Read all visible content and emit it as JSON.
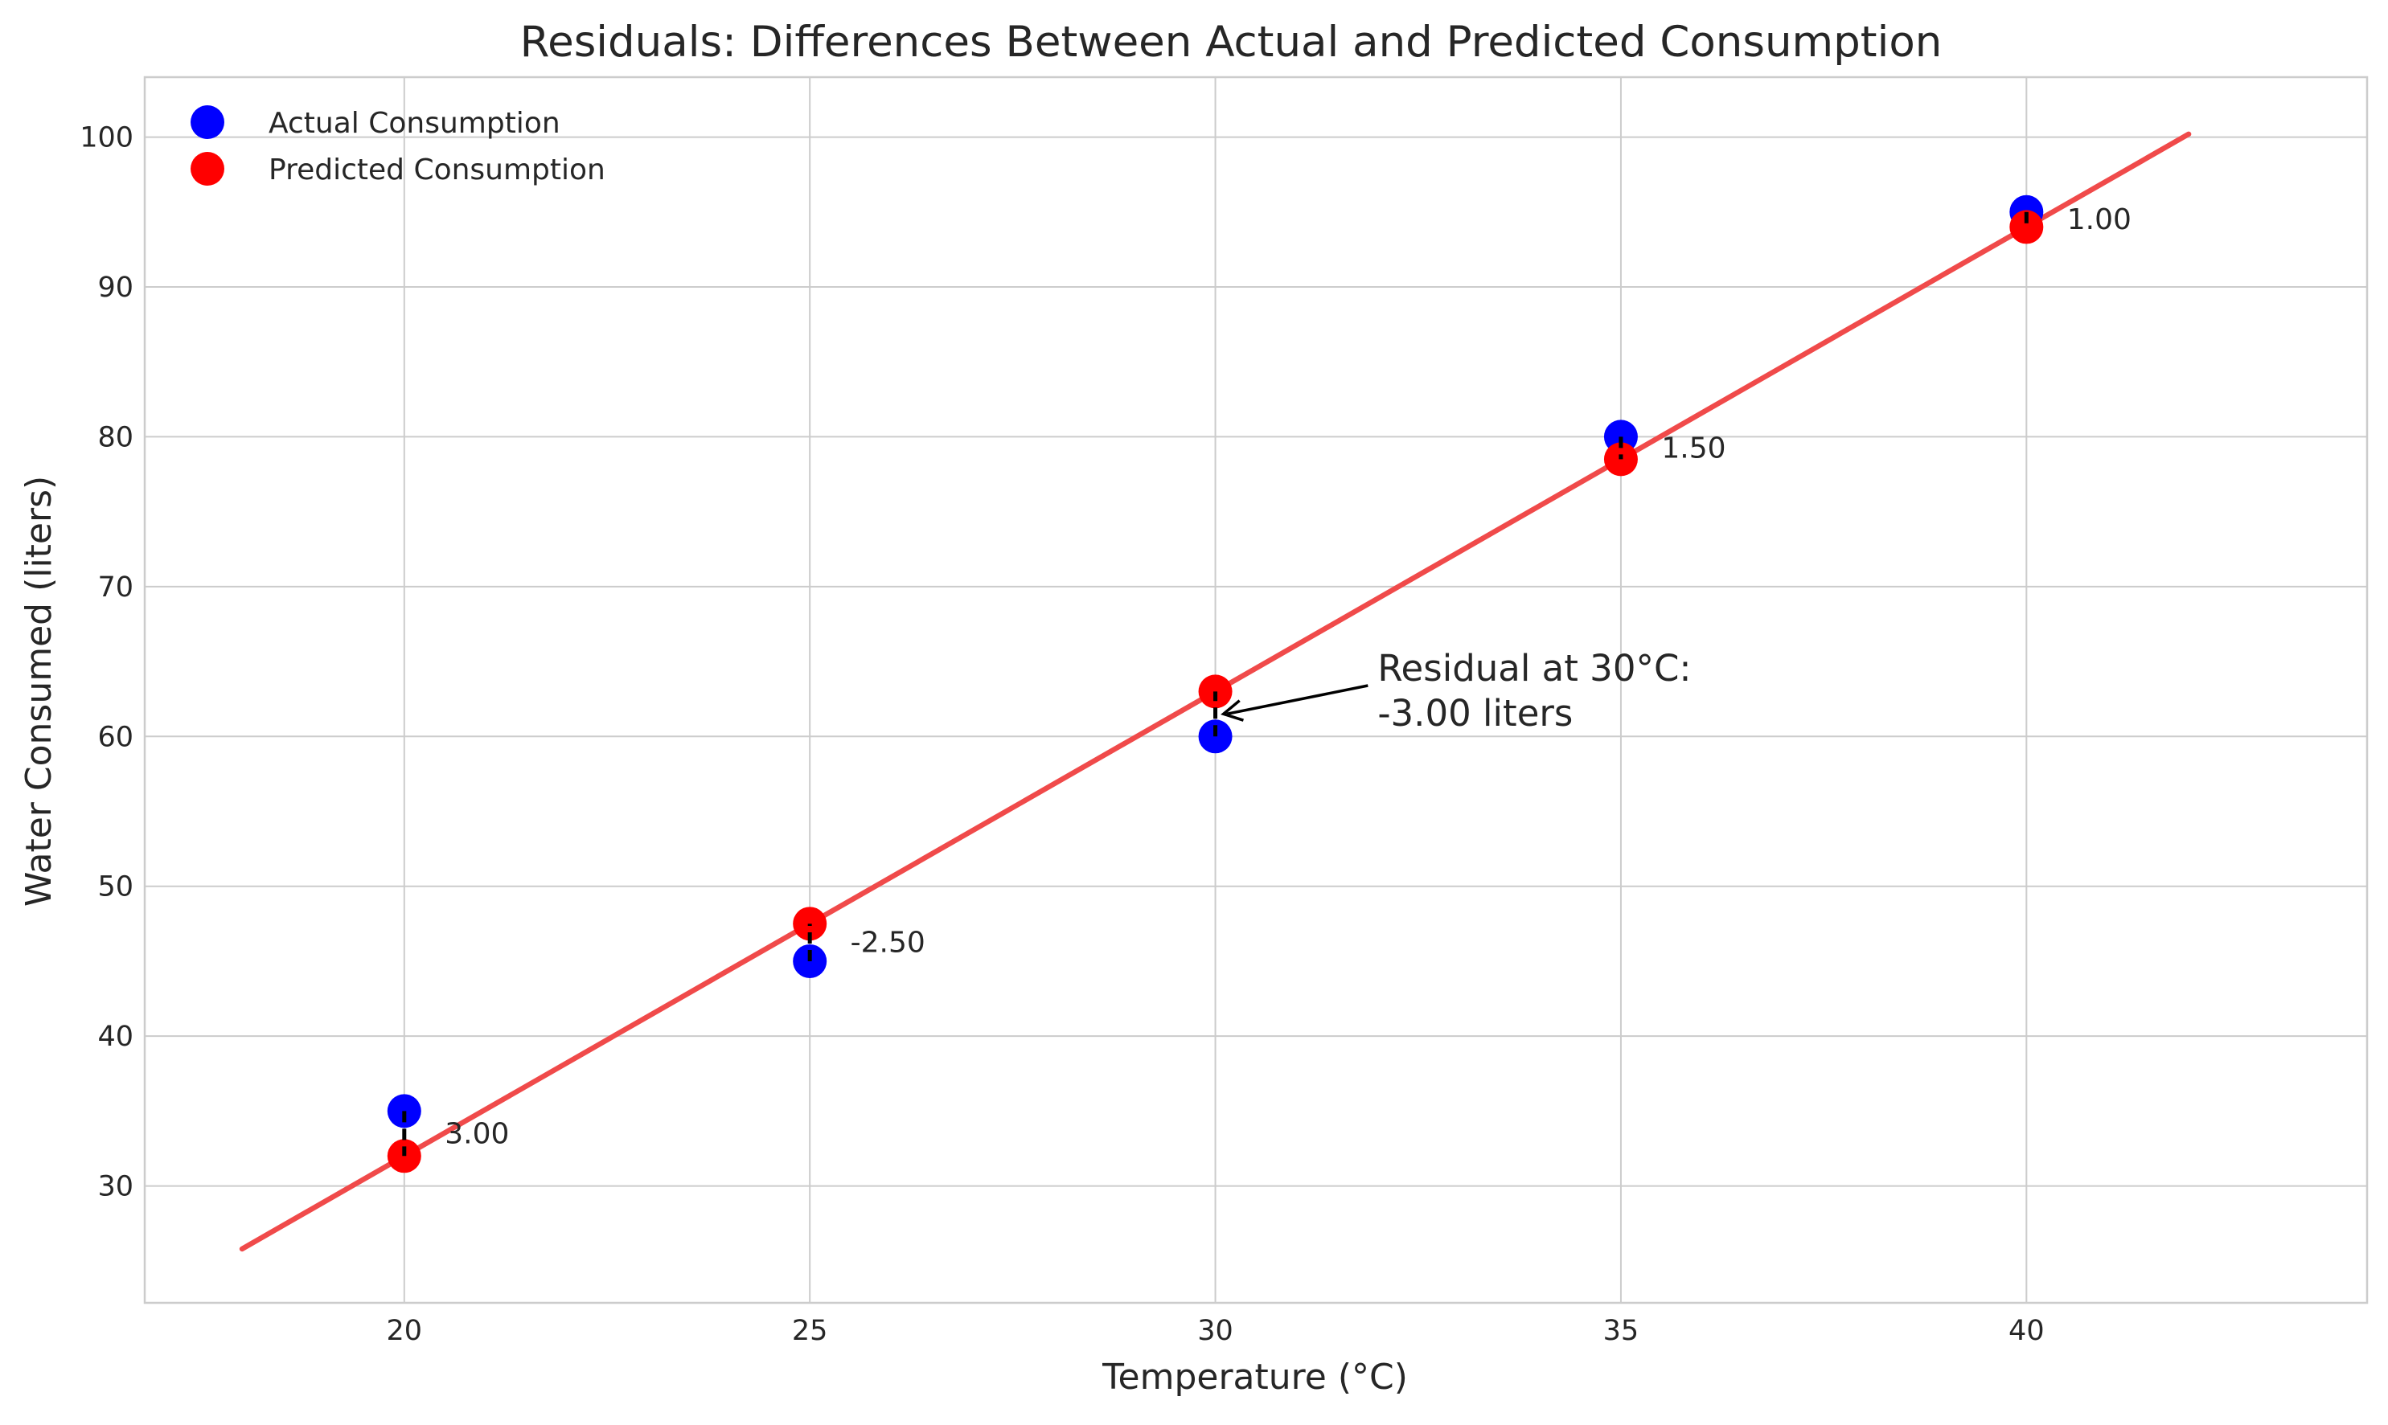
{
  "chart_data": {
    "type": "scatter",
    "title": "Residuals: Differences Between Actual and Predicted Consumption",
    "xlabel": "Temperature (°C)",
    "ylabel": "Water Consumed (liters)",
    "xlim": [
      16.8,
      44.2
    ],
    "ylim": [
      22.2,
      104.0
    ],
    "x_ticks": [
      20,
      25,
      30,
      35,
      40
    ],
    "x_tick_labels": [
      "20",
      "25",
      "30",
      "35",
      "40"
    ],
    "y_ticks": [
      30,
      40,
      50,
      60,
      70,
      80,
      90,
      100
    ],
    "y_tick_labels": [
      "30",
      "40",
      "50",
      "60",
      "70",
      "80",
      "90",
      "100"
    ],
    "grid": true,
    "legend_position": "top-left",
    "series": [
      {
        "name": "Actual Consumption",
        "color": "#0000ff",
        "x": [
          20,
          25,
          30,
          35,
          40
        ],
        "y": [
          35,
          45,
          60,
          80,
          95
        ]
      },
      {
        "name": "Predicted Consumption",
        "color": "#ff0000",
        "x": [
          20,
          25,
          30,
          35,
          40
        ],
        "y": [
          32,
          47.5,
          63,
          78.5,
          94
        ]
      }
    ],
    "regression_line": {
      "color": "#f04a4a",
      "x": [
        18,
        42
      ],
      "y": [
        25.8,
        100.2
      ]
    },
    "residuals": {
      "color": "#000000",
      "x": [
        20,
        25,
        30,
        35,
        40
      ],
      "labels": [
        "3.00",
        "-2.50",
        "-3.00",
        "1.50",
        "1.00"
      ],
      "label_positions": [
        {
          "x": 20.5,
          "y": 33.5
        },
        {
          "x": 25.5,
          "y": 46.25
        },
        null,
        {
          "x": 35.5,
          "y": 79.25
        },
        {
          "x": 40.5,
          "y": 94.5
        }
      ]
    },
    "annotation": {
      "lines": [
        "Residual at 30°C:",
        "-3.00 liters"
      ],
      "text_x": 32,
      "text_y": 62.0,
      "arrow_to_x": 30.1,
      "arrow_to_y": 61.5
    }
  }
}
